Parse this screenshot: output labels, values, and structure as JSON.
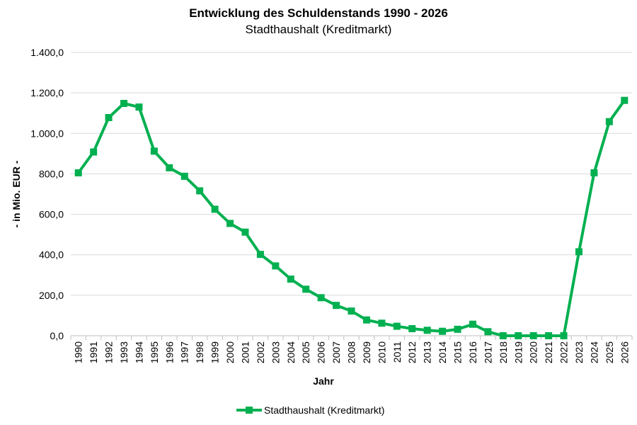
{
  "chart_data": {
    "type": "line",
    "title": "Entwicklung des Schuldenstands 1990 - 2026",
    "subtitle": "Stadthaushalt (Kreditmarkt)",
    "xlabel": "Jahr",
    "ylabel": "- in Mio. EUR -",
    "ylim": [
      0,
      1400
    ],
    "yticks": [
      0,
      200,
      400,
      600,
      800,
      1000,
      1200,
      1400
    ],
    "ytick_labels": [
      "0,0",
      "200,0",
      "400,0",
      "600,0",
      "800,0",
      "1.000,0",
      "1.200,0",
      "1.400,0"
    ],
    "grid": true,
    "legend_position": "bottom",
    "categories": [
      "1990",
      "1991",
      "1992",
      "1993",
      "1994",
      "1995",
      "1996",
      "1997",
      "1998",
      "1999",
      "2000",
      "2001",
      "2002",
      "2003",
      "2004",
      "2005",
      "2006",
      "2007",
      "2008",
      "2009",
      "2010",
      "2011",
      "2012",
      "2013",
      "2014",
      "2015",
      "2016",
      "2017",
      "2018",
      "2019",
      "2020",
      "2021",
      "2022",
      "2023",
      "2024",
      "2025",
      "2026"
    ],
    "series": [
      {
        "name": "Stadthaushalt (Kreditmarkt)",
        "color": "#00b050",
        "values": [
          805,
          908,
          1078,
          1148,
          1130,
          912,
          830,
          788,
          716,
          625,
          555,
          512,
          402,
          345,
          280,
          230,
          188,
          150,
          122,
          78,
          62,
          47,
          35,
          27,
          22,
          32,
          57,
          20,
          0,
          0,
          0,
          0,
          0,
          415,
          805,
          1058,
          1163
        ]
      }
    ]
  }
}
